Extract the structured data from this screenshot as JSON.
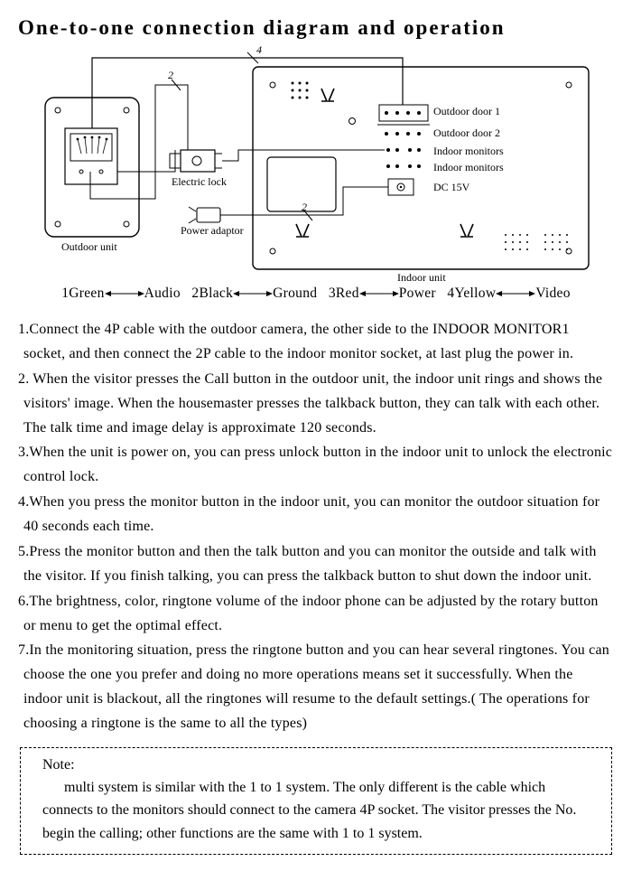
{
  "title": "One-to-one connection diagram and operation",
  "diagram": {
    "labels": {
      "outdoor_unit": "Outdoor unit",
      "indoor_unit": "Indoor unit",
      "electric_lock": "Electric lock",
      "power_adaptor": "Power adaptor",
      "wire4": "4",
      "wire2a": "2",
      "wire2b": "2",
      "conn1": "Outdoor door 1",
      "conn2": "Outdoor door 2",
      "conn3": "Indoor monitors",
      "conn4": "Indoor monitors",
      "conn5": "DC 15V"
    },
    "colors": {
      "stroke": "#000000",
      "fill_bg": "#ffffff"
    }
  },
  "legend": {
    "items": [
      {
        "n": "1",
        "name": "Green",
        "fn": "Audio"
      },
      {
        "n": "2",
        "name": "Black",
        "fn": "Ground"
      },
      {
        "n": "3",
        "name": "Red",
        "fn": "Power"
      },
      {
        "n": "4",
        "name": "Yellow",
        "fn": "Video"
      }
    ]
  },
  "instructions": [
    "1.Connect the 4P cable with the outdoor camera, the other side to the INDOOR MONITOR1 socket, and then connect the 2P cable to the indoor monitor socket, at last plug the power in.",
    "2. When the visitor presses the Call button in the outdoor unit, the indoor unit rings  and shows the visitors' image. When the housemaster presses the talkback button, they can talk with each other. The talk time and image  delay is approximate 120 seconds.",
    "3.When the unit is power on, you can press unlock button in the indoor unit to unlock the electronic control lock.",
    "4.When you press the monitor button in the indoor unit, you can monitor the outdoor situation for 40 seconds each time.",
    "5.Press the monitor button and then the talk button and you can monitor the outside and talk with the visitor. If you finish talking, you can press the talkback button to shut down the indoor unit.",
    "6.The brightness, color, ringtone volume of the indoor phone can be adjusted  by the rotary button  or  menu to get the optimal effect.",
    "7.In the monitoring situation, press the ringtone button and you can hear several ringtones. You can choose the one you prefer and doing no more operations  means set it successfully. When the indoor unit is blackout, all the ringtones will resume to the default settings.( The operations for choosing a ringtone is the same to all the types)"
  ],
  "note": {
    "title": "Note:",
    "body": "multi system is similar with the 1 to 1 system. The only different is the  cable which connects to the monitors should connect to the camera 4P socket. The visitor presses the No. begin the calling; other functions are the same with 1 to 1 system."
  }
}
